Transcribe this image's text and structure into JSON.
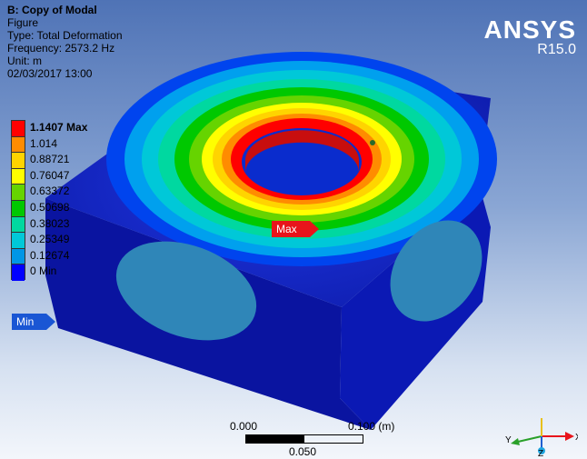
{
  "header": {
    "title": "B: Copy of Modal",
    "subtitle": "Figure",
    "type": "Type: Total Deformation",
    "frequency": "Frequency: 2573.2 Hz",
    "unit": "Unit: m",
    "timestamp": "02/03/2017 13:00"
  },
  "logo": {
    "name": "ANSYS",
    "version": "R15.0"
  },
  "legend": {
    "labels": [
      "1.1407 Max",
      "1.014",
      "0.88721",
      "0.76047",
      "0.63372",
      "0.50698",
      "0.38023",
      "0.25349",
      "0.12674",
      "0 Min"
    ],
    "colors": [
      "#ff0000",
      "#ff8c00",
      "#ffd400",
      "#ffff00",
      "#66d400",
      "#00c800",
      "#00d8a0",
      "#00c8d8",
      "#0096e6",
      "#0000ff"
    ]
  },
  "probes": {
    "max_label": "Max",
    "min_label": "Min"
  },
  "scale": {
    "left": "0.000",
    "right": "0.100 (m)",
    "mid": "0.050"
  },
  "triad": {
    "x_label": "X",
    "y_label": "Y",
    "z_label": "Z"
  },
  "colors": {
    "block_top": "#1a2fd0",
    "block_left": "#0a15a6",
    "block_right": "#0d1cb8",
    "hole_face": "#2f86b8"
  }
}
